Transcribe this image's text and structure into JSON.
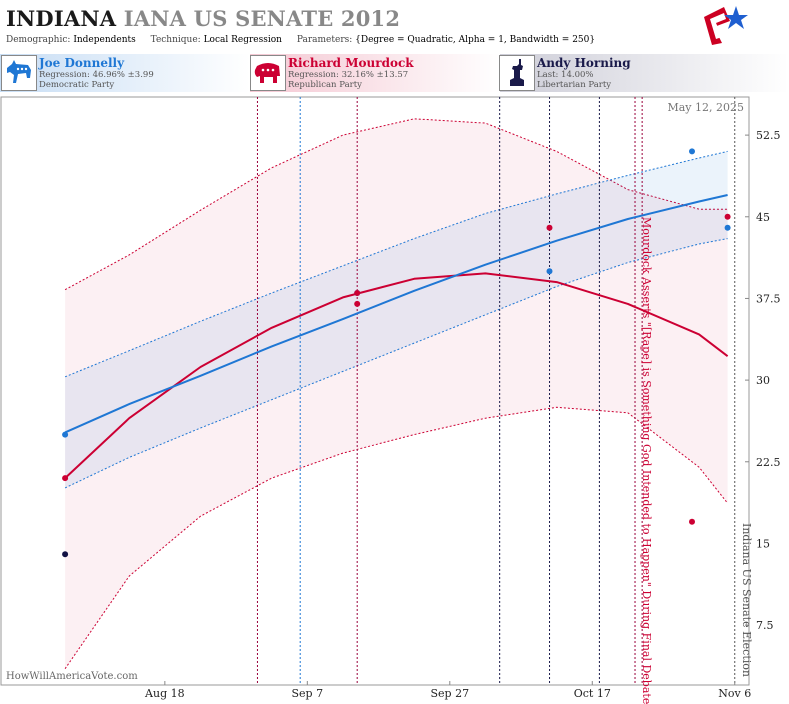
{
  "header": {
    "state": "INDIANA",
    "race": "IANA US SENATE 2012",
    "demographic_label": "Demographic:",
    "demographic": "Independents",
    "technique_label": "Technique:",
    "technique": "Local Regression",
    "parameters_label": "Parameters:",
    "parameters": "{Degree = Quadratic, Alpha = 1, Bandwidth = 250}"
  },
  "candidates": [
    {
      "name": "Joe Donnelly",
      "stat": "Regression: 46.96% ±3.99",
      "party": "Democratic Party",
      "color": "#1f77d4",
      "icon": "donkey-icon"
    },
    {
      "name": "Richard Mourdock",
      "stat": "Regression: 32.16% ±13.57",
      "party": "Republican Party",
      "color": "#cc0033",
      "icon": "elephant-icon"
    },
    {
      "name": "Andy Horning",
      "stat": "Last: 14.00%",
      "party": "Libertarian Party",
      "color": "#1a1a4a",
      "icon": "liberty-icon"
    }
  ],
  "date_stamp": "May 12, 2025",
  "watermark": "HowWillAmericaVote.com",
  "colors": {
    "dem": "#1f77d4",
    "rep": "#cc0033",
    "lib": "#111144"
  },
  "chart_data": {
    "type": "line",
    "x_axis": {
      "type": "date",
      "range": [
        "2012-07-26",
        "2012-11-08"
      ],
      "ticks": [
        "Aug 18",
        "Sep 7",
        "Sep 27",
        "Oct 17",
        "Nov 6"
      ],
      "tick_dates": [
        "2012-08-18",
        "2012-09-07",
        "2012-09-27",
        "2012-10-17",
        "2012-11-06"
      ]
    },
    "y_axis": {
      "range": [
        2,
        56
      ],
      "position": "right",
      "ticks": [
        7.5,
        15,
        22.5,
        30,
        37.5,
        45,
        52.5
      ]
    },
    "grid": false,
    "series": [
      {
        "name": "Joe Donnelly",
        "key": "dem",
        "x": [
          "2012-08-04",
          "2012-08-13",
          "2012-08-23",
          "2012-09-02",
          "2012-09-12",
          "2012-09-22",
          "2012-10-02",
          "2012-10-12",
          "2012-10-22",
          "2012-11-01",
          "2012-11-05"
        ],
        "y": [
          25.2,
          27.8,
          30.4,
          33.1,
          35.6,
          38.2,
          40.6,
          42.8,
          44.8,
          46.4,
          47.0
        ],
        "upper": [
          30.3,
          32.7,
          35.4,
          38.0,
          40.5,
          43.0,
          45.3,
          47.1,
          48.8,
          50.4,
          51.0
        ],
        "lower": [
          20.1,
          22.9,
          25.6,
          28.2,
          30.8,
          33.4,
          36.0,
          38.6,
          40.8,
          42.5,
          43.0
        ],
        "points": {
          "x": [
            "2012-08-04",
            "2012-09-14",
            "2012-10-11",
            "2012-10-31",
            "2012-11-05"
          ],
          "y": [
            25,
            38,
            40,
            51,
            44
          ]
        }
      },
      {
        "name": "Richard Mourdock",
        "key": "rep",
        "x": [
          "2012-08-04",
          "2012-08-13",
          "2012-08-23",
          "2012-09-02",
          "2012-09-12",
          "2012-09-22",
          "2012-10-02",
          "2012-10-12",
          "2012-10-22",
          "2012-11-01",
          "2012-11-05"
        ],
        "y": [
          21.0,
          26.5,
          31.2,
          34.8,
          37.6,
          39.3,
          39.8,
          39.0,
          37.0,
          34.2,
          32.2
        ],
        "upper": [
          38.3,
          41.5,
          45.6,
          49.5,
          52.5,
          54.0,
          53.6,
          51.0,
          47.5,
          45.7,
          45.7
        ],
        "lower": [
          3.5,
          12.0,
          17.5,
          21.0,
          23.3,
          25.0,
          26.5,
          27.5,
          27.0,
          22.0,
          18.7
        ],
        "points": {
          "x": [
            "2012-08-04",
            "2012-09-14",
            "2012-09-14",
            "2012-10-11",
            "2012-10-31",
            "2012-11-05"
          ],
          "y": [
            21,
            38,
            37,
            44,
            17,
            45
          ]
        }
      },
      {
        "name": "Andy Horning",
        "key": "lib",
        "points": {
          "x": [
            "2012-08-04"
          ],
          "y": [
            14
          ]
        }
      }
    ],
    "event_lines": [
      {
        "date": "2012-08-31",
        "color": "#99003a",
        "style": "dotted"
      },
      {
        "date": "2012-09-06",
        "color": "#1f77d4",
        "style": "dotted"
      },
      {
        "date": "2012-09-14",
        "color": "#99003a",
        "style": "dotted"
      },
      {
        "date": "2012-10-04",
        "color": "#1a1a4a",
        "style": "dotted"
      },
      {
        "date": "2012-10-11",
        "color": "#1a1a4a",
        "style": "dotted"
      },
      {
        "date": "2012-10-18",
        "color": "#1a1a4a",
        "style": "dotted"
      },
      {
        "date": "2012-10-23",
        "color": "#99003a",
        "style": "dotted"
      },
      {
        "date": "2012-10-24",
        "color": "#99003a",
        "style": "dotted"
      },
      {
        "date": "2012-11-06",
        "color": "#555555",
        "style": "dotted"
      }
    ],
    "annotations": [
      {
        "text": "Mourdock Asserts \"[Rape] is Something God Intended to Happen\" During Final Debate",
        "date": "2012-10-23",
        "color": "#cc0033"
      },
      {
        "text": "Indiana US Senate Election",
        "date": "2012-11-06",
        "color": "#555555"
      }
    ]
  }
}
